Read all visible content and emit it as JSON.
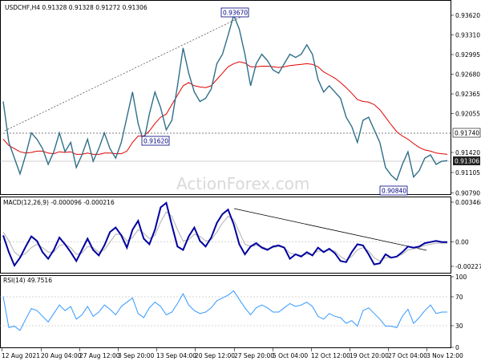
{
  "title": "USDCHF,H4  0.91328 0.91328 0.91272 0.91306",
  "watermark": "ActionForex.com",
  "colors": {
    "price": "#2f6f89",
    "ma": "#e00000",
    "macd": "#0000a0",
    "signal": "#b0b0b0",
    "rsi": "#3399ff",
    "trend": "#000000",
    "grid": "#cfcfcf",
    "box": "#000080"
  },
  "chart_data": [
    {
      "type": "line",
      "panel": "price",
      "title": "USDCHF,H4  0.91328 0.91328 0.91272 0.91306",
      "x_ticks": [
        "12 Aug 2021",
        "20 Aug 04:00",
        "27 Aug 12:00",
        "3 Sep 20:00",
        "13 Sep 04:00",
        "20 Sep 12:00",
        "27 Sep 20:00",
        "5 Oct 04:00",
        "12 Oct 12:00",
        "19 Oct 20:00",
        "27 Oct 04:00",
        "3 Nov 12:00"
      ],
      "y_ticks": [
        "0.93620",
        "0.93310",
        "0.92995",
        "0.92680",
        "0.92365",
        "0.92055",
        "0.91740",
        "0.91420",
        "0.91306",
        "0.91105",
        "0.90790"
      ],
      "ylim": [
        0.9079,
        0.9362
      ],
      "annotations": [
        "0.93670",
        "0.91620",
        "0.90840",
        "0.91740",
        "0.91306"
      ],
      "series": [
        {
          "values": [
            0.9225,
            0.916,
            0.9135,
            0.911,
            0.914,
            0.9175,
            0.9165,
            0.915,
            0.9125,
            0.9145,
            0.9175,
            0.9145,
            0.916,
            0.912,
            0.914,
            0.9165,
            0.913,
            0.915,
            0.9175,
            0.915,
            0.9135,
            0.916,
            0.92,
            0.924,
            0.919,
            0.916,
            0.9205,
            0.924,
            0.9215,
            0.918,
            0.9195,
            0.925,
            0.931,
            0.927,
            0.924,
            0.9225,
            0.923,
            0.9245,
            0.9285,
            0.93,
            0.933,
            0.9362,
            0.934,
            0.93,
            0.925,
            0.9285,
            0.93,
            0.929,
            0.9275,
            0.927,
            0.9285,
            0.93,
            0.9295,
            0.93,
            0.9315,
            0.93,
            0.926,
            0.924,
            0.925,
            0.924,
            0.923,
            0.92,
            0.9185,
            0.916,
            0.9195,
            0.92,
            0.918,
            0.916,
            0.912,
            0.9108,
            0.91,
            0.9125,
            0.9145,
            0.9105,
            0.9115,
            0.9135,
            0.914,
            0.9125,
            0.913,
            0.9131
          ]
        },
        {
          "values": [
            0.9165,
            0.9155,
            0.915,
            0.9145,
            0.9143,
            0.9144,
            0.9146,
            0.9146,
            0.9143,
            0.9142,
            0.9145,
            0.9144,
            0.9145,
            0.9141,
            0.9141,
            0.9143,
            0.9141,
            0.9141,
            0.9143,
            0.9143,
            0.9142,
            0.9142,
            0.9146,
            0.916,
            0.917,
            0.917,
            0.9178,
            0.919,
            0.92,
            0.9205,
            0.922,
            0.9235,
            0.925,
            0.9255,
            0.925,
            0.9248,
            0.9247,
            0.925,
            0.926,
            0.927,
            0.928,
            0.9285,
            0.9288,
            0.9286,
            0.928,
            0.928,
            0.9281,
            0.9281,
            0.928,
            0.9279,
            0.928,
            0.9282,
            0.9283,
            0.9284,
            0.9285,
            0.9284,
            0.928,
            0.9272,
            0.9267,
            0.9262,
            0.9255,
            0.9247,
            0.9238,
            0.9228,
            0.9225,
            0.9224,
            0.922,
            0.9212,
            0.92,
            0.9188,
            0.9177,
            0.917,
            0.9165,
            0.9158,
            0.9152,
            0.9148,
            0.9146,
            0.9143,
            0.9142,
            0.9141
          ]
        }
      ]
    },
    {
      "type": "line",
      "panel": "macd",
      "title": "MACD(12,26,9) -0.000096 -0.000216",
      "y_ticks": [
        "0.003468",
        "0.00",
        "-0.002274"
      ],
      "ylim": [
        -0.002274,
        0.003468
      ],
      "series": [
        {
          "values": [
            0.0005,
            -0.001,
            -0.0022,
            -0.0015,
            -0.0005,
            0.0004,
            0.0,
            -0.001,
            -0.0016,
            -0.0008,
            0.0003,
            -0.0003,
            -0.001,
            -0.0018,
            -0.0008,
            0.0002,
            -0.0008,
            -0.0013,
            -0.0004,
            0.0008,
            0.0012,
            0.0005,
            -0.0006,
            0.001,
            0.0018,
            0.0002,
            -0.0003,
            0.001,
            0.003,
            0.0034,
            0.0014,
            -0.0005,
            -0.0008,
            0.0004,
            0.0012,
            0.0,
            -0.0005,
            0.0003,
            0.0016,
            0.0024,
            0.0028,
            0.0015,
            -0.0003,
            -0.0012,
            -0.0005,
            -0.0002,
            -0.0006,
            -0.0008,
            -0.0005,
            -0.0004,
            -0.0006,
            -0.0016,
            -0.0012,
            -0.0014,
            -0.001,
            -0.0013,
            -0.0006,
            -0.001,
            -0.0007,
            -0.0011,
            -0.0018,
            -0.0019,
            -0.001,
            -0.0003,
            -0.0004,
            -0.0012,
            -0.0021,
            -0.002,
            -0.0012,
            -0.0015,
            -0.0014,
            -0.001,
            -0.0005,
            -0.0006,
            -0.0005,
            -0.0002,
            -0.0001,
            0.0,
            -0.0001,
            -0.0001
          ]
        },
        {
          "values": [
            0.0008,
            0.0,
            -0.001,
            -0.0014,
            -0.0011,
            -0.0006,
            -0.0003,
            -0.0006,
            -0.001,
            -0.001,
            -0.0004,
            -0.0003,
            -0.0006,
            -0.0012,
            -0.0011,
            -0.0005,
            -0.0006,
            -0.001,
            -0.0008,
            -0.0001,
            0.0006,
            0.0006,
            0.0,
            0.0003,
            0.001,
            0.0007,
            0.0002,
            0.0005,
            0.0017,
            0.0026,
            0.0022,
            0.001,
            0.0,
            0.0001,
            0.0006,
            0.0004,
            0.0,
            0.0001,
            0.0008,
            0.0016,
            0.0022,
            0.0019,
            0.0008,
            -0.0003,
            -0.0005,
            -0.0004,
            -0.0005,
            -0.0007,
            -0.0006,
            -0.0005,
            -0.0006,
            -0.0011,
            -0.0012,
            -0.0013,
            -0.0012,
            -0.0012,
            -0.0009,
            -0.0009,
            -0.0008,
            -0.0009,
            -0.0014,
            -0.0017,
            -0.0014,
            -0.0008,
            -0.0006,
            -0.0009,
            -0.0015,
            -0.0018,
            -0.0015,
            -0.0015,
            -0.0014,
            -0.0012,
            -0.0008,
            -0.0007,
            -0.0006,
            -0.0004,
            -0.0003,
            -0.0002,
            -0.0002,
            -0.0002
          ]
        }
      ]
    },
    {
      "type": "line",
      "panel": "rsi",
      "title": "RSI(14) 49.7516",
      "y_ticks": [
        "100",
        "70",
        "30",
        "0"
      ],
      "ylim": [
        0,
        100
      ],
      "series": [
        {
          "values": [
            72,
            28,
            30,
            24,
            40,
            55,
            52,
            44,
            36,
            48,
            60,
            52,
            58,
            40,
            46,
            58,
            44,
            50,
            60,
            54,
            46,
            58,
            64,
            70,
            48,
            42,
            56,
            64,
            58,
            46,
            50,
            62,
            76,
            60,
            52,
            48,
            50,
            56,
            66,
            70,
            74,
            80,
            68,
            56,
            46,
            56,
            60,
            56,
            50,
            50,
            56,
            62,
            58,
            60,
            64,
            58,
            44,
            40,
            48,
            44,
            42,
            34,
            38,
            30,
            52,
            56,
            48,
            40,
            30,
            30,
            28,
            44,
            54,
            34,
            42,
            52,
            60,
            48,
            50,
            50
          ]
        }
      ]
    }
  ]
}
